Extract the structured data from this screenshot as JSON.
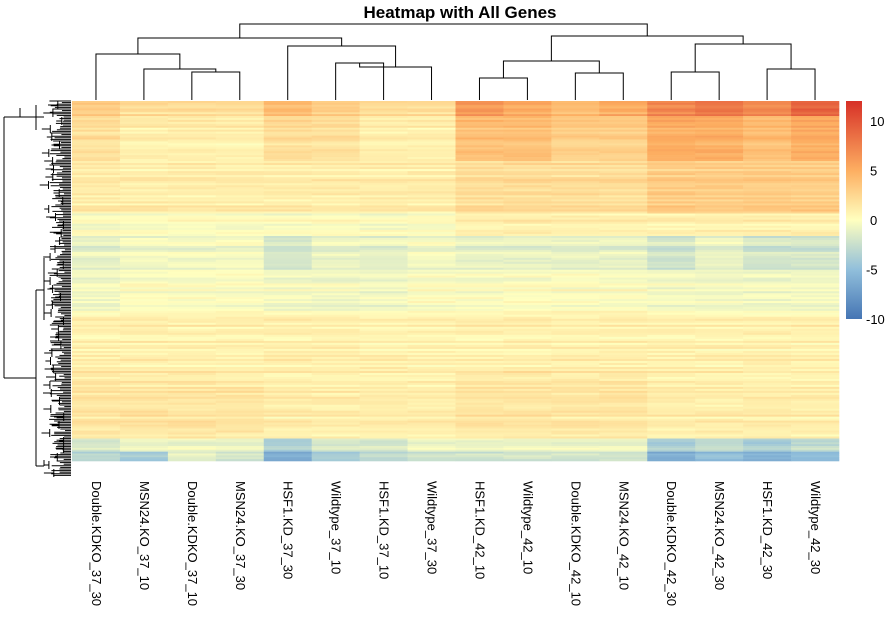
{
  "chart_data": {
    "type": "heatmap",
    "title": "Heatmap with All Genes",
    "columns": [
      "Double.KDKO_37_30",
      "MSN24.KO_37_10",
      "Double.KDKO_37_10",
      "MSN24.KO_37_30",
      "HSF1.KD_37_30",
      "Wildtype_37_10",
      "HSF1.KD_37_10",
      "Wildtype_37_30",
      "HSF1.KD_42_10",
      "Wildtype_42_10",
      "Double.KDKO_42_10",
      "MSN24.KO_42_10",
      "Double.KDKO_42_30",
      "MSN24.KO_42_30",
      "HSF1.KD_42_30",
      "Wildtype_42_30"
    ],
    "row_dendrogram": true,
    "column_dendrogram": true,
    "color_scale": {
      "min": -10,
      "max": 12,
      "ticks": [
        10,
        5,
        0,
        -5,
        -10
      ],
      "stops": [
        {
          "value": -10,
          "color": "#4575b4"
        },
        {
          "value": -5,
          "color": "#91bfdb"
        },
        {
          "value": 0,
          "color": "#ffffbf"
        },
        {
          "value": 5,
          "color": "#fdae61"
        },
        {
          "value": 12,
          "color": "#d73027"
        }
      ]
    },
    "row_blocks": [
      {
        "rows": 0.04,
        "values": [
          3,
          2,
          2,
          2,
          4,
          3,
          2,
          2,
          6,
          5,
          4,
          5,
          7,
          8,
          7,
          9
        ]
      },
      {
        "rows": 0.12,
        "values": [
          2,
          1,
          1,
          1,
          2,
          2,
          1,
          1,
          4,
          4,
          3,
          3,
          5,
          5,
          4,
          5
        ]
      },
      {
        "rows": 0.14,
        "values": [
          1,
          1,
          1,
          1,
          1,
          1,
          1,
          1,
          2,
          2,
          2,
          2,
          3,
          3,
          3,
          3
        ]
      },
      {
        "rows": 0.06,
        "values": [
          0,
          0,
          0,
          0,
          0,
          0,
          0,
          0,
          1,
          1,
          1,
          1,
          1,
          1,
          1,
          1
        ]
      },
      {
        "rows": 0.09,
        "values": [
          -1,
          -0.5,
          -0.5,
          -0.5,
          -2,
          -1,
          -1,
          -0.5,
          -1,
          -1,
          -1,
          -1,
          -2,
          -1,
          -2,
          -2
        ]
      },
      {
        "rows": 0.12,
        "values": [
          -0.5,
          0,
          0,
          0,
          -0.5,
          -0.5,
          -0.5,
          0,
          0,
          0,
          0,
          0,
          -0.5,
          -0.5,
          -0.5,
          -0.5
        ]
      },
      {
        "rows": 0.15,
        "values": [
          1,
          1,
          1,
          1,
          1,
          1,
          1,
          1,
          1,
          1,
          1,
          1,
          1,
          1,
          1,
          1
        ]
      },
      {
        "rows": 0.18,
        "values": [
          1.5,
          1.5,
          1.5,
          1.5,
          1,
          1,
          1,
          1,
          1.5,
          1.5,
          1.5,
          1.5,
          1,
          1,
          1,
          1
        ]
      },
      {
        "rows": 0.035,
        "values": [
          -2,
          -1,
          -1,
          -1,
          -4,
          -2,
          -2,
          -1,
          -1,
          -1,
          -1,
          -1,
          -4,
          -3,
          -4,
          -3
        ]
      },
      {
        "rows": 0.025,
        "values": [
          -3,
          -4,
          -1,
          -2,
          -6,
          -4,
          -3,
          -2,
          -2,
          -2,
          -2,
          -2,
          -6,
          -5,
          -6,
          -5
        ]
      }
    ]
  }
}
